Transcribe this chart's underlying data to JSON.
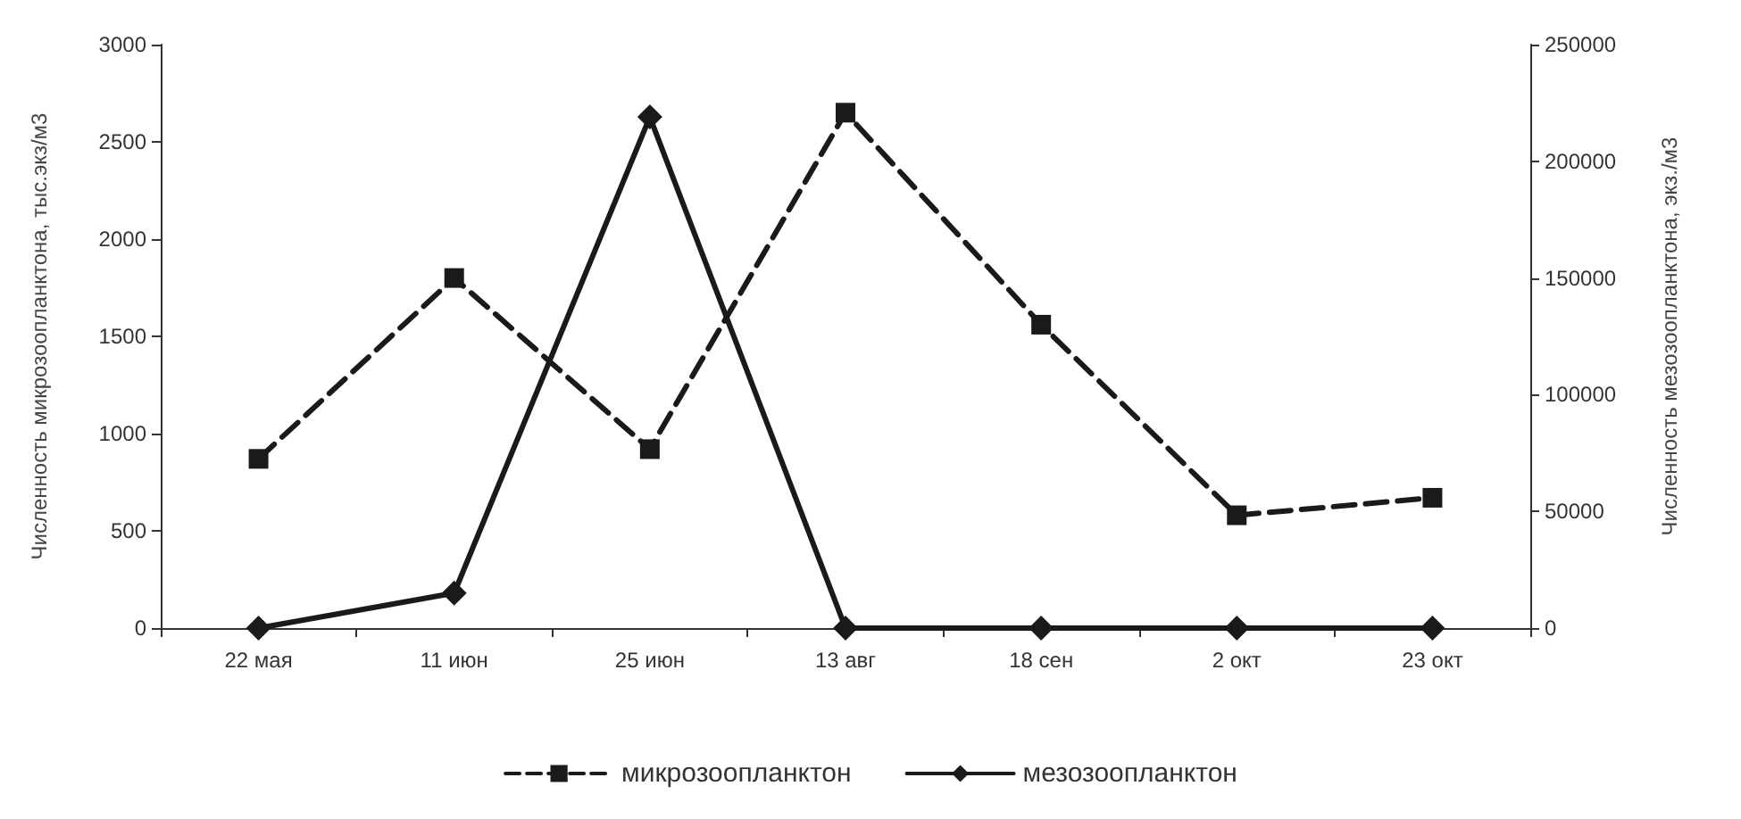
{
  "chart_data": {
    "type": "line",
    "ylabel": "Численность микрозоопланктона, тыс.экз/м3",
    "y2label": "Численность мезозоопланктона, экз./м3",
    "categories": [
      "22 мая",
      "11 июн",
      "25 июн",
      "13 авг",
      "18 сен",
      "2 окт",
      "23 окт"
    ],
    "series": [
      {
        "name": "микрозоопланктон",
        "color": "#1a1a1a",
        "marker": "square",
        "line_style": "dashed",
        "values": [
          870,
          1800,
          920,
          2650,
          1560,
          580,
          670
        ]
      },
      {
        "name": "мезозоопланктон",
        "color": "#1a1a1a",
        "marker": "diamond",
        "line_style": "solid",
        "axis": "y2",
        "values": [
          0,
          15000,
          219000,
          0,
          0,
          0,
          0
        ]
      }
    ],
    "ylim": [
      0,
      3000
    ],
    "yticks": [
      0,
      500,
      1000,
      1500,
      2000,
      2500,
      3000
    ],
    "y2lim": [
      0,
      250000
    ],
    "y2ticks": [
      0,
      50000,
      100000,
      150000,
      200000,
      250000
    ],
    "grid": false,
    "legend": "bottom"
  }
}
